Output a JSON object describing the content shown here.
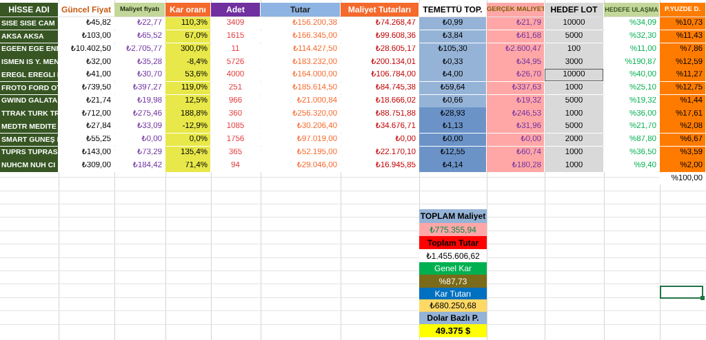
{
  "headers": [
    "HİSSE ADI",
    "Güncel Fiyat",
    "Maliyet fiyatı",
    "Kar oranı",
    "Adet",
    "Tutar",
    "Maliyet Tutarları",
    "TEMETTÜ TOP.",
    "GERÇEK MALİYET",
    "HEDEF LOT",
    "HEDEFE ULAŞMA",
    "P.YÜZDE D."
  ],
  "rows": [
    [
      "SISE SISE CAM",
      "₺45,82",
      "₺22,77",
      "110,3%",
      "3409",
      "₺156.200,38",
      "₺74.268,47",
      "₺0,99",
      "₺21,79",
      "10000",
      "%34,09",
      "%10,73"
    ],
    [
      "AKSA AKSA",
      "₺103,00",
      "₺65,52",
      "67,0%",
      "1615",
      "₺166.345,00",
      "₺99.608,36",
      "₺3,84",
      "₺61,68",
      "5000",
      "%32,30",
      "%11,43"
    ],
    [
      "EGEEN EGE END",
      "₺10.402,50",
      "₺2.705,77",
      "300,0%",
      "11",
      "₺114.427,50",
      "₺28.605,17",
      "₺105,30",
      "₺2.600,47",
      "100",
      "%11,00",
      "%7,86"
    ],
    [
      "ISMEN IS Y. MEN",
      "₺32,00",
      "₺35,28",
      "-8,4%",
      "5726",
      "₺183.232,00",
      "₺200.134,01",
      "₺0,33",
      "₺34,95",
      "3000",
      "%190,87",
      "%12,59"
    ],
    [
      "EREGL EREGLI D",
      "₺41,00",
      "₺30,70",
      "53,6%",
      "4000",
      "₺164.000,00",
      "₺106.784,00",
      "₺4,00",
      "₺26,70",
      "10000",
      "%40,00",
      "%11,27"
    ],
    [
      "FROTO FORD OT",
      "₺739,50",
      "₺397,27",
      "119,0%",
      "251",
      "₺185.614,50",
      "₺84.745,38",
      "₺59,64",
      "₺337,63",
      "1000",
      "%25,10",
      "%12,75"
    ],
    [
      "GWIND GALATA",
      "₺21,74",
      "₺19,98",
      "12,5%",
      "966",
      "₺21.000,84",
      "₺18.666,02",
      "₺0,66",
      "₺19,32",
      "5000",
      "%19,32",
      "%1,44"
    ],
    [
      "TTRAK TURK TR.",
      "₺712,00",
      "₺275,46",
      "188,8%",
      "360",
      "₺256.320,00",
      "₺88.751,88",
      "₺28,93",
      "₺246,53",
      "1000",
      "%36,00",
      "%17,61"
    ],
    [
      "MEDTR MEDITE",
      "₺27,84",
      "₺33,09",
      "-12,9%",
      "1085",
      "₺30.206,40",
      "₺34.676,71",
      "₺1,13",
      "₺31,96",
      "5000",
      "%21,70",
      "%2,08"
    ],
    [
      "SMART GÜNEŞ I",
      "₺55,25",
      "₺0,00",
      "0,0%",
      "1756",
      "₺97.019,00",
      "₺0,00",
      "₺0,00",
      "₺0,00",
      "2000",
      "%87,80",
      "%6,67"
    ],
    [
      "TUPRS TUPRAS",
      "₺143,00",
      "₺73,29",
      "135,4%",
      "365",
      "₺52.195,00",
      "₺22.170,10",
      "₺12,55",
      "₺60,74",
      "1000",
      "%36,50",
      "%3,59"
    ],
    [
      "NUHCM NUH CI",
      "₺309,00",
      "₺184,42",
      "71,4%",
      "94",
      "₺29.046,00",
      "₺16.945,85",
      "₺4,14",
      "₺180,28",
      "1000",
      "%9,40",
      "%2,00"
    ]
  ],
  "pct_total": "%100,00",
  "summary": {
    "total_cost_label": "TOPLAM Maliyet",
    "total_cost_value": "₺775.355,94",
    "total_amount_label": "Toplam Tutar",
    "total_amount_value": "₺1.455.606,62",
    "general_profit_label": "Genel Kar",
    "general_profit_value": "%87,73",
    "profit_amount_label": "Kar Tutarı",
    "profit_amount_value": "₺680.250,68",
    "usd_label": "Dolar Bazlı P.",
    "usd_value": "49.375 $"
  },
  "colors": {
    "name_col": "#375623",
    "yellow": "#ffff00",
    "yellow_light": "#e8e84a",
    "purple": "#7030a0",
    "blue_header": "#8db4e2",
    "orange": "#f4692c",
    "red": "#ff0000",
    "green": "#00b050",
    "lightgreen": "#c4d79b",
    "pink": "#ffa7a7",
    "gray": "#d9d9d9",
    "p_orange": "#ff7b00",
    "blue_mid": "#95b3d7",
    "blue_dark": "#6b93c8",
    "olive": "#7a6b1a",
    "navy": "#0070c0",
    "gold": "#ffd966"
  }
}
